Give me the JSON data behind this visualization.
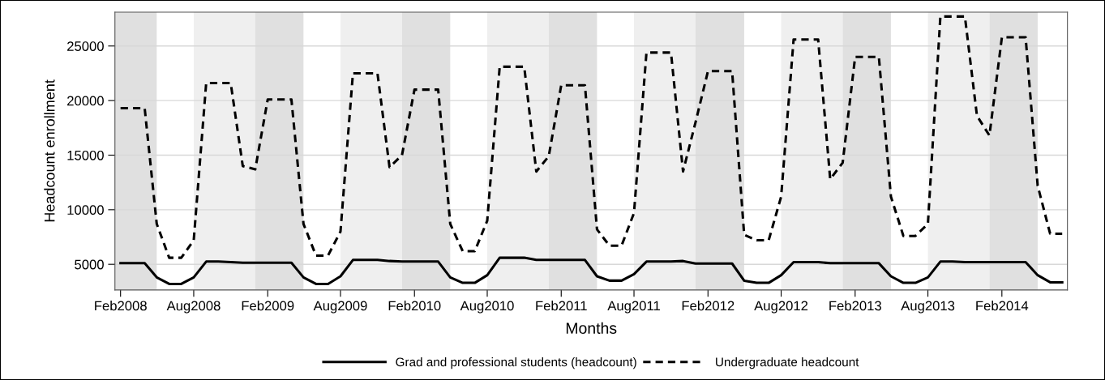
{
  "chart_data": {
    "type": "line",
    "xlabel": "Months",
    "ylabel": "Headcount enrollment",
    "x": [
      "2008-02",
      "2008-03",
      "2008-04",
      "2008-05",
      "2008-06",
      "2008-07",
      "2008-08",
      "2008-09",
      "2008-10",
      "2008-11",
      "2008-12",
      "2009-01",
      "2009-02",
      "2009-03",
      "2009-04",
      "2009-05",
      "2009-06",
      "2009-07",
      "2009-08",
      "2009-09",
      "2009-10",
      "2009-11",
      "2009-12",
      "2010-01",
      "2010-02",
      "2010-03",
      "2010-04",
      "2010-05",
      "2010-06",
      "2010-07",
      "2010-08",
      "2010-09",
      "2010-10",
      "2010-11",
      "2010-12",
      "2011-01",
      "2011-02",
      "2011-03",
      "2011-04",
      "2011-05",
      "2011-06",
      "2011-07",
      "2011-08",
      "2011-09",
      "2011-10",
      "2011-11",
      "2011-12",
      "2012-01",
      "2012-02",
      "2012-03",
      "2012-04",
      "2012-05",
      "2012-06",
      "2012-07",
      "2012-08",
      "2012-09",
      "2012-10",
      "2012-11",
      "2012-12",
      "2013-01",
      "2013-02",
      "2013-03",
      "2013-04",
      "2013-05",
      "2013-06",
      "2013-07",
      "2013-08",
      "2013-09",
      "2013-10",
      "2013-11",
      "2013-12",
      "2014-01",
      "2014-02",
      "2014-03",
      "2014-04",
      "2014-05",
      "2014-06",
      "2014-07"
    ],
    "series": [
      {
        "name": "Grad and professional students (headcount)",
        "color": "#000000",
        "line_style": "solid",
        "values": [
          5100,
          5100,
          5100,
          3800,
          3200,
          3200,
          3800,
          5250,
          5250,
          5200,
          5150,
          5150,
          5150,
          5150,
          5150,
          3800,
          3200,
          3200,
          3900,
          5400,
          5400,
          5400,
          5300,
          5250,
          5250,
          5250,
          5250,
          3800,
          3300,
          3300,
          4000,
          5600,
          5600,
          5600,
          5400,
          5400,
          5400,
          5400,
          5400,
          3900,
          3500,
          3500,
          4100,
          5250,
          5250,
          5250,
          5300,
          5070,
          5070,
          5070,
          5070,
          3500,
          3300,
          3300,
          4000,
          5200,
          5200,
          5200,
          5100,
          5100,
          5100,
          5100,
          5100,
          3900,
          3300,
          3300,
          3800,
          5250,
          5250,
          5200,
          5200,
          5200,
          5200,
          5200,
          5200,
          4000,
          3350,
          3350
        ]
      },
      {
        "name": "Undergraduate headcount",
        "color": "#000000",
        "line_style": "dashed",
        "values": [
          19300,
          19300,
          19300,
          8700,
          5600,
          5600,
          7200,
          21600,
          21600,
          21600,
          14000,
          13700,
          20100,
          20100,
          20100,
          8700,
          5800,
          5800,
          8000,
          22500,
          22500,
          22500,
          13900,
          15000,
          21000,
          21000,
          21000,
          8700,
          6200,
          6200,
          9000,
          23100,
          23100,
          23100,
          13500,
          14900,
          21400,
          21400,
          21400,
          8200,
          6700,
          6700,
          9700,
          24400,
          24400,
          24400,
          13500,
          18000,
          22700,
          22700,
          22700,
          7700,
          7200,
          7200,
          11200,
          25600,
          25600,
          25600,
          12800,
          14300,
          24000,
          24000,
          24000,
          11200,
          7600,
          7600,
          8700,
          27700,
          27700,
          27700,
          18600,
          16800,
          25800,
          25800,
          25800,
          12200,
          7800,
          7800
        ]
      }
    ],
    "xlim": [
      "2008-01-18",
      "2014-07-14"
    ],
    "xticks": [
      {
        "value": "2008-02",
        "label": "Feb2008"
      },
      {
        "value": "2008-08",
        "label": "Aug2008"
      },
      {
        "value": "2009-02",
        "label": "Feb2009"
      },
      {
        "value": "2009-08",
        "label": "Aug2009"
      },
      {
        "value": "2010-02",
        "label": "Feb2010"
      },
      {
        "value": "2010-08",
        "label": "Aug2010"
      },
      {
        "value": "2011-02",
        "label": "Feb2011"
      },
      {
        "value": "2011-08",
        "label": "Aug2011"
      },
      {
        "value": "2012-02",
        "label": "Feb2012"
      },
      {
        "value": "2012-08",
        "label": "Aug2012"
      },
      {
        "value": "2013-02",
        "label": "Feb2013"
      },
      {
        "value": "2013-08",
        "label": "Aug2013"
      },
      {
        "value": "2014-02",
        "label": "Feb2014"
      }
    ],
    "ylim": [
      2650,
      28100
    ],
    "yticks": [
      5000,
      10000,
      15000,
      20000,
      25000
    ],
    "grid": "y",
    "legend": "bottom",
    "marker": "none",
    "bands": [
      {
        "axis": "x",
        "from": "2008-01-18",
        "to": "2008-05",
        "color": "#e0e0e0"
      },
      {
        "axis": "x",
        "from": "2008-08",
        "to": "2009-01",
        "color": "#efefef"
      },
      {
        "axis": "x",
        "from": "2009-01",
        "to": "2009-05",
        "color": "#e0e0e0"
      },
      {
        "axis": "x",
        "from": "2009-08",
        "to": "2010-01",
        "color": "#efefef"
      },
      {
        "axis": "x",
        "from": "2010-01",
        "to": "2010-05",
        "color": "#e0e0e0"
      },
      {
        "axis": "x",
        "from": "2010-08",
        "to": "2011-01",
        "color": "#efefef"
      },
      {
        "axis": "x",
        "from": "2011-01",
        "to": "2011-05",
        "color": "#e0e0e0"
      },
      {
        "axis": "x",
        "from": "2011-08",
        "to": "2012-01",
        "color": "#efefef"
      },
      {
        "axis": "x",
        "from": "2012-01",
        "to": "2012-05",
        "color": "#e0e0e0"
      },
      {
        "axis": "x",
        "from": "2012-08",
        "to": "2013-01",
        "color": "#efefef"
      },
      {
        "axis": "x",
        "from": "2013-01",
        "to": "2013-05",
        "color": "#e0e0e0"
      },
      {
        "axis": "x",
        "from": "2013-08",
        "to": "2014-01",
        "color": "#efefef"
      },
      {
        "axis": "x",
        "from": "2014-01",
        "to": "2014-05",
        "color": "#e0e0e0"
      }
    ]
  }
}
